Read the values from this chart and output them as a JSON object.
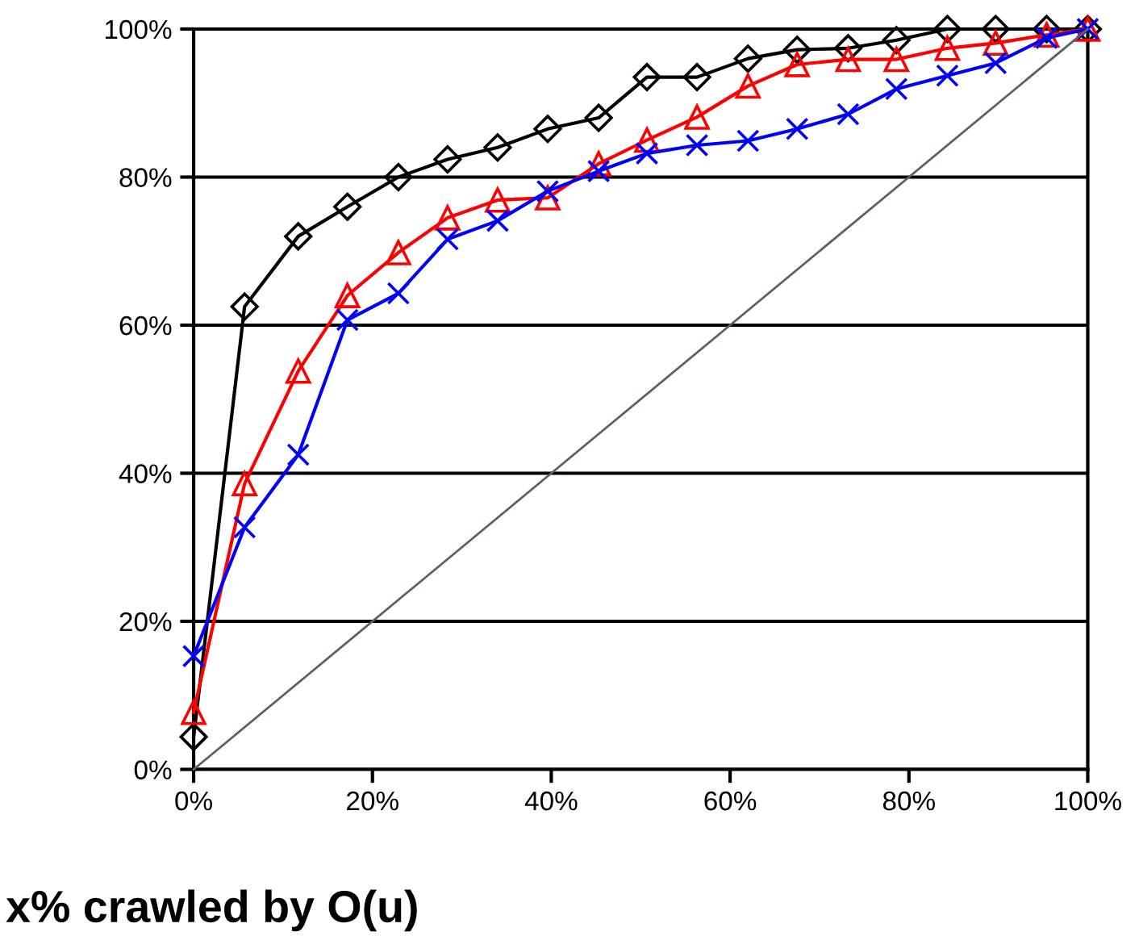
{
  "chart_data": {
    "type": "line",
    "xlabel": "x% crawled by O(u)",
    "x": [
      0,
      5.7,
      11.7,
      17.2,
      22.9,
      28.4,
      34,
      39.6,
      45.3,
      50.7,
      56.3,
      62,
      67.5,
      73.2,
      78.6,
      84.3,
      89.7,
      95.4,
      100
    ],
    "series": [
      {
        "color": "#000000",
        "marker": "diamond",
        "values": [
          4.4,
          62.5,
          72,
          76,
          80,
          82.4,
          84,
          86.5,
          88,
          93.5,
          93.5,
          96,
          97.2,
          97.4,
          98.5,
          100,
          100,
          100,
          100
        ]
      },
      {
        "color": "#ff0000",
        "marker": "triangle",
        "values": [
          7.7,
          38.6,
          53.8,
          64,
          69.8,
          74.5,
          76.9,
          77.2,
          81.8,
          85,
          88.1,
          92.3,
          95.2,
          95.9,
          95.9,
          97.4,
          98.1,
          99.2,
          100
        ]
      },
      {
        "color": "#0000ff",
        "marker": "cross",
        "values": [
          15.3,
          32.7,
          42.5,
          60.7,
          64.3,
          71.6,
          74.1,
          78.1,
          80.8,
          83.2,
          84.3,
          84.9,
          86.5,
          88.5,
          91.9,
          93.7,
          95.4,
          98.8,
          100
        ]
      },
      {
        "color": "#556655",
        "marker": "none",
        "x": [
          0,
          100
        ],
        "values": [
          0,
          100
        ]
      }
    ],
    "xlim": [
      0,
      100
    ],
    "ylim": [
      0,
      100
    ],
    "xticks": [
      {
        "value": 0,
        "label": "0%"
      },
      {
        "value": 20,
        "label": "20%"
      },
      {
        "value": 40,
        "label": "40%"
      },
      {
        "value": 60,
        "label": "60%"
      },
      {
        "value": 80,
        "label": "80%"
      },
      {
        "value": 100,
        "label": "100%"
      }
    ],
    "yticks": [
      {
        "value": 0,
        "label": "0%"
      },
      {
        "value": 20,
        "label": "20%"
      },
      {
        "value": 40,
        "label": "40%"
      },
      {
        "value": 60,
        "label": "60%"
      },
      {
        "value": 80,
        "label": "80%"
      },
      {
        "value": 100,
        "label": "100%"
      }
    ],
    "grid": "y"
  }
}
